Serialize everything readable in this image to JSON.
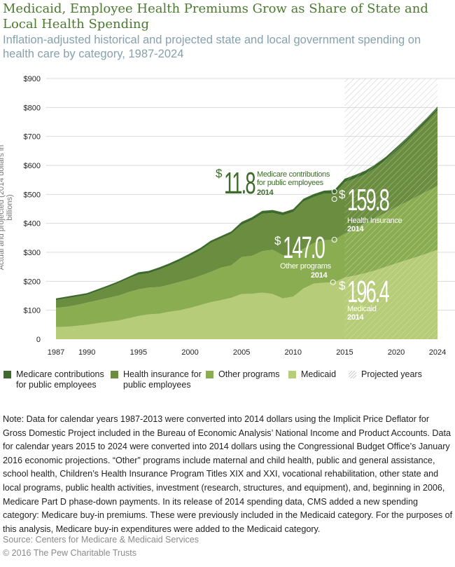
{
  "header": {
    "title": "Medicaid, Employee Health Premiums Grow as Share of State and Local Health Spending",
    "subtitle": "Inflation-adjusted historical and projected state and local government spending on health care by category, 1987-2024"
  },
  "chart_data": {
    "type": "area",
    "stacked": true,
    "ylabel": "Actual and projected (2014 dollars in billions)",
    "xlabel": "",
    "xlim": [
      1987,
      2024
    ],
    "ylim": [
      0,
      900
    ],
    "grid": true,
    "x_ticks": [
      "1987",
      "1990",
      "1995",
      "2000",
      "2005",
      "2010",
      "2015",
      "2020",
      "2024"
    ],
    "y_ticks": [
      "0",
      "$100",
      "$200",
      "$300",
      "$400",
      "$500",
      "$600",
      "$700",
      "$800",
      "$900"
    ],
    "projected_from": 2015,
    "x": [
      1987,
      1988,
      1989,
      1990,
      1991,
      1992,
      1993,
      1994,
      1995,
      1996,
      1997,
      1998,
      1999,
      2000,
      2001,
      2002,
      2003,
      2004,
      2005,
      2006,
      2007,
      2008,
      2009,
      2010,
      2011,
      2012,
      2013,
      2014,
      2015,
      2016,
      2017,
      2018,
      2019,
      2020,
      2021,
      2022,
      2023,
      2024
    ],
    "series": [
      {
        "name": "Medicaid",
        "color": "#b6cc78",
        "values": [
          42,
          43,
          46,
          50,
          55,
          60,
          64,
          72,
          80,
          86,
          88,
          95,
          100,
          108,
          118,
          128,
          135,
          143,
          156,
          157,
          161,
          156,
          141,
          147,
          175,
          192,
          195,
          196.4,
          213,
          220,
          228,
          238,
          250,
          262,
          273,
          284,
          296,
          309
        ]
      },
      {
        "name": "Other programs",
        "color": "#8bad52",
        "values": [
          66,
          69,
          72,
          76,
          79,
          82,
          86,
          90,
          92,
          92,
          92,
          93,
          98,
          99,
          101,
          104,
          112,
          112,
          128,
          131,
          143,
          153,
          149,
          145,
          137,
          140,
          147,
          147.0,
          151,
          162,
          173,
          181,
          187,
          194,
          201,
          208,
          215,
          220
        ]
      },
      {
        "name": "Health insurance for public employees",
        "color": "#6b8d40",
        "values": [
          27,
          29,
          29,
          27,
          32,
          37,
          43,
          47,
          51,
          50,
          60,
          66,
          72,
          81,
          88,
          100,
          101,
          109,
          111,
          123,
          129,
          127,
          138,
          147,
          163,
          159,
          161,
          159.8,
          178,
          173,
          169,
          173,
          181,
          193,
          208,
          225,
          241,
          261
        ]
      },
      {
        "name": "Medicare contributions for public employees",
        "color": "#3e6b2b",
        "values": [
          6,
          6,
          6,
          6,
          6,
          6,
          6,
          6,
          8,
          8,
          8,
          8,
          8,
          8,
          8,
          8,
          8,
          8,
          10,
          10,
          10,
          10,
          10,
          10,
          10,
          10,
          10,
          11.8,
          12,
          12,
          12,
          12,
          12,
          13,
          13,
          13,
          13,
          13
        ]
      }
    ],
    "annotations": {
      "medicare": {
        "dollar": "$",
        "value": "11.8",
        "label": "Medicare contributions for public employees",
        "year": "2014"
      },
      "health_insurance": {
        "dollar": "$",
        "value": "159.8",
        "label": "Health Insurance",
        "year": "2014"
      },
      "other": {
        "dollar": "$",
        "value": "147.0",
        "label": "Other programs",
        "year": "2014"
      },
      "medicaid": {
        "dollar": "$",
        "value": "196.4",
        "label": "Medicaid",
        "year": "2014"
      }
    },
    "legend": {
      "placement": "bottom",
      "items": [
        {
          "label": "Medicare contributions for public employees",
          "color": "#3e6b2b"
        },
        {
          "label": "Health insurance for public employees",
          "color": "#6b8d40"
        },
        {
          "label": "Other programs",
          "color": "#8bad52"
        },
        {
          "label": "Medicaid",
          "color": "#b6cc78"
        },
        {
          "label": "Projected years",
          "color": "hatched"
        }
      ]
    }
  },
  "footer": {
    "note": "Note: Data for calendar years 1987-2013 were converted into 2014 dollars using the Implicit Price Deflator for Gross Domestic Project included in the Bureau of Economic Analysis’ National Income and Product Accounts. Data for calendar years 2015 to 2024 were converted into 2014 dollars using the Congressional Budget Office’s January 2016 economic projections. “Other” programs include maternal and child health, public and general assistance, school health, Children’s Health Insurance Program Titles XIX and XXI, vocational rehabilitation, other state and local programs, public health activities, investment (research, structures, and equipment), and, beginning in 2006, Medicare Part D phase-down payments. In its release of 2014 spending data, CMS added a new spending category: Medicare buy-in premiums. These were previously included in the Medicaid category. For the purposes of this analysis, Medicare buy-in expenditures were added to the Medicaid category.",
    "source": "Source: Centers for Medicare & Medicaid Services",
    "copyright": "© 2016 The Pew Charitable Trusts"
  }
}
